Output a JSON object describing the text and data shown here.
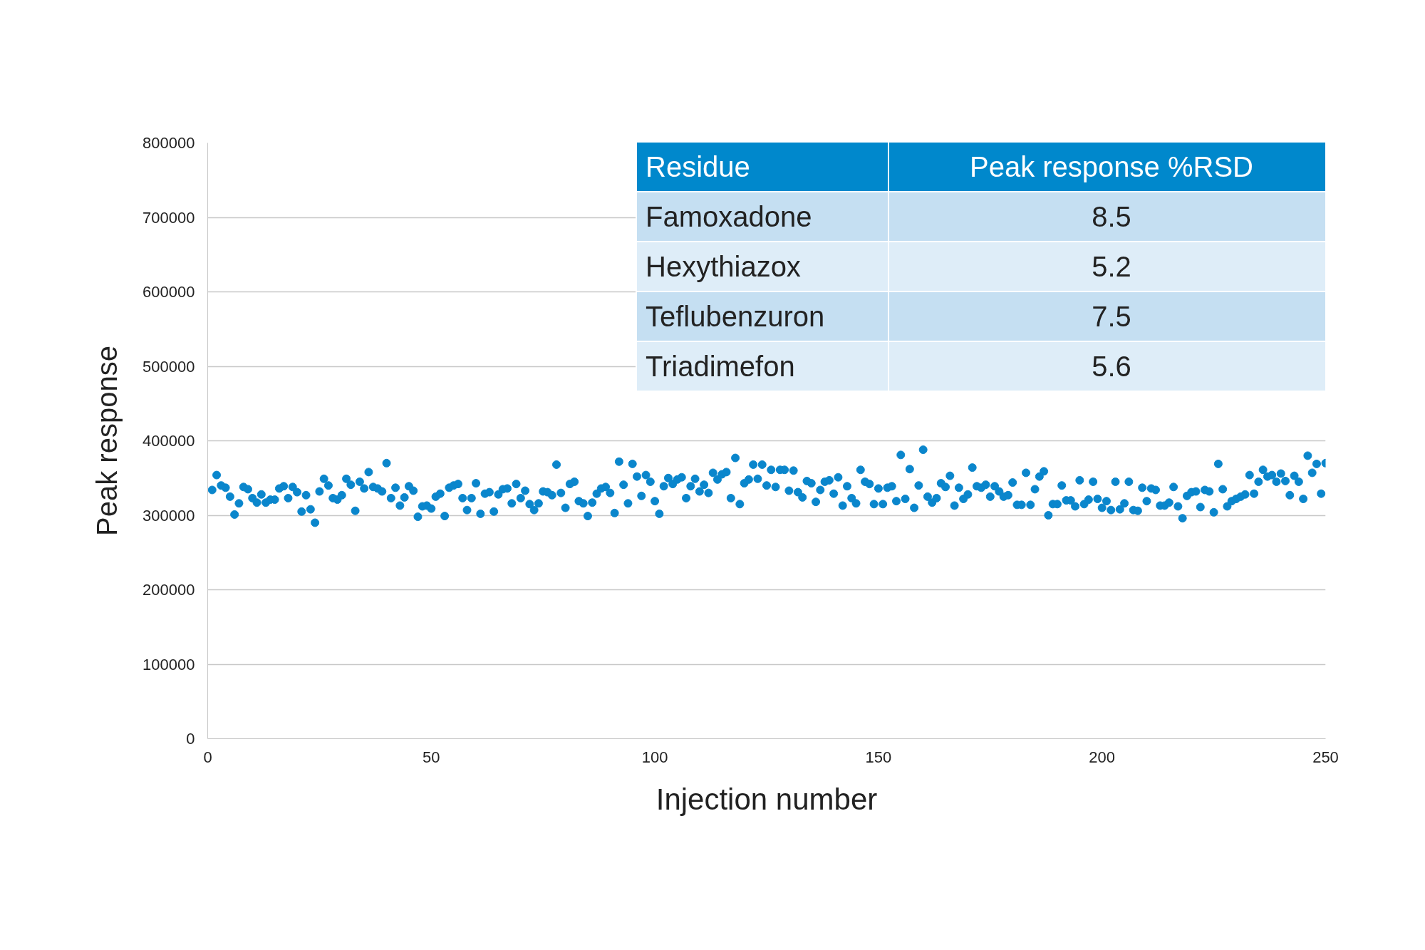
{
  "chart_data": [
    {
      "type": "scatter",
      "xlabel": "Injection number",
      "ylabel": "Peak response",
      "x": [
        1,
        2,
        3,
        4,
        5,
        6,
        7,
        8,
        9,
        10,
        11,
        12,
        13,
        14,
        15,
        16,
        17,
        18,
        19,
        20,
        21,
        22,
        23,
        24,
        25,
        26,
        27,
        28,
        29,
        30,
        31,
        32,
        33,
        34,
        35,
        36,
        37,
        38,
        39,
        40,
        41,
        42,
        43,
        44,
        45,
        46,
        47,
        48,
        49,
        50,
        51,
        52,
        53,
        54,
        55,
        56,
        57,
        58,
        59,
        60,
        61,
        62,
        63,
        64,
        65,
        66,
        67,
        68,
        69,
        70,
        71,
        72,
        73,
        74,
        75,
        76,
        77,
        78,
        79,
        80,
        81,
        82,
        83,
        84,
        85,
        86,
        87,
        88,
        89,
        90,
        91,
        92,
        93,
        94,
        95,
        96,
        97,
        98,
        99,
        100,
        101,
        102,
        103,
        104,
        105,
        106,
        107,
        108,
        109,
        110,
        111,
        112,
        113,
        114,
        115,
        116,
        117,
        118,
        119,
        120,
        121,
        122,
        123,
        124,
        125,
        126,
        127,
        128,
        129,
        130,
        131,
        132,
        133,
        134,
        135,
        136,
        137,
        138,
        139,
        140,
        141,
        142,
        143,
        144,
        145,
        146,
        147,
        148,
        149,
        150,
        151,
        152,
        153,
        154,
        155,
        156,
        157,
        158,
        159,
        160,
        161,
        162,
        163,
        164,
        165,
        166,
        167,
        168,
        169,
        170,
        171,
        172,
        173,
        174,
        175,
        176,
        177,
        178,
        179,
        180,
        181,
        182,
        183,
        184,
        185,
        186,
        187,
        188,
        189,
        190,
        191,
        192,
        193,
        194,
        195,
        196,
        197,
        198,
        199,
        200,
        201,
        202,
        203,
        204,
        205,
        206,
        207,
        208,
        209,
        210,
        211,
        212,
        213,
        214,
        215,
        216,
        217,
        218,
        219,
        220,
        221,
        222,
        223,
        224,
        225,
        226,
        227,
        228,
        229,
        230,
        231,
        232,
        233,
        234,
        235,
        236,
        237,
        238,
        239,
        240,
        241,
        242,
        243,
        244,
        245,
        246,
        247,
        248,
        249,
        250
      ],
      "series": [
        {
          "color": "#0a86cc",
          "values": [
            334000,
            354000,
            340000,
            337000,
            325000,
            301000,
            316000,
            338000,
            335000,
            323000,
            317000,
            328000,
            317000,
            321000,
            321000,
            336000,
            339000,
            323000,
            338000,
            331000,
            305000,
            327000,
            308000,
            290000,
            332000,
            349000,
            340000,
            323000,
            321000,
            327000,
            349000,
            341000,
            306000,
            345000,
            336000,
            358000,
            338000,
            336000,
            332000,
            370000,
            323000,
            337000,
            313000,
            324000,
            339000,
            333000,
            298000,
            312000,
            313000,
            309000,
            325000,
            329000,
            299000,
            337000,
            340000,
            342000,
            323000,
            307000,
            323000,
            343000,
            302000,
            329000,
            331000,
            305000,
            328000,
            335000,
            336000,
            316000,
            342000,
            323000,
            333000,
            315000,
            307000,
            316000,
            332000,
            331000,
            327000,
            368000,
            330000,
            310000,
            342000,
            345000,
            319000,
            316000,
            299000,
            317000,
            329000,
            336000,
            338000,
            330000,
            303000,
            372000,
            341000,
            316000,
            369000,
            352000,
            326000,
            354000,
            345000,
            319000,
            302000,
            339000,
            350000,
            342000,
            348000,
            351000,
            323000,
            339000,
            349000,
            332000,
            341000,
            330000,
            357000,
            348000,
            355000,
            358000,
            323000,
            377000,
            315000,
            343000,
            348000,
            368000,
            349000,
            368000,
            340000,
            361000,
            338000,
            361000,
            361000,
            333000,
            360000,
            331000,
            324000,
            346000,
            343000,
            318000,
            334000,
            345000,
            347000,
            329000,
            351000,
            313000,
            339000,
            323000,
            316000,
            361000,
            345000,
            342000,
            315000,
            336000,
            315000,
            337000,
            339000,
            319000,
            381000,
            322000,
            362000,
            310000,
            340000,
            388000,
            325000,
            317000,
            323000,
            343000,
            338000,
            353000,
            313000,
            337000,
            322000,
            328000,
            364000,
            339000,
            337000,
            341000,
            325000,
            339000,
            332000,
            325000,
            327000,
            344000,
            314000,
            314000,
            357000,
            314000,
            335000,
            352000,
            359000,
            300000,
            315000,
            315000,
            340000,
            320000,
            320000,
            312000,
            347000,
            315000,
            321000,
            345000,
            322000,
            310000,
            319000,
            307000,
            345000,
            308000,
            316000,
            345000,
            307000,
            306000,
            337000,
            319000,
            336000,
            334000,
            313000,
            313000,
            317000,
            338000,
            312000,
            296000,
            326000,
            331000,
            332000,
            311000,
            334000,
            332000,
            304000,
            369000,
            335000,
            312000,
            319000,
            322000,
            325000,
            328000,
            354000,
            329000,
            345000,
            361000,
            352000,
            354000,
            345000,
            356000,
            346000,
            327000,
            353000,
            345000,
            322000,
            380000,
            357000,
            369000,
            329000,
            370000
          ]
        }
      ],
      "xlim": [
        0,
        250
      ],
      "ylim": [
        0,
        800000
      ],
      "xticks": [
        0,
        50,
        100,
        150,
        200,
        250
      ],
      "yticks": [
        0,
        100000,
        200000,
        300000,
        400000,
        500000,
        600000,
        700000,
        800000
      ],
      "grid": "y",
      "marker": "circle"
    },
    {
      "type": "other",
      "xlabel": "Residue",
      "ylabel": "Peak response %RSD",
      "categories": [
        "Famoxadone",
        "Hexythiazox",
        "Teflubenzuron",
        "Triadimefon"
      ],
      "values": [
        8.5,
        5.2,
        7.5,
        5.6
      ],
      "data_labels": true,
      "colors": [
        "#c5dff2",
        "#deedf8",
        "#c5dff2",
        "#deedf8"
      ],
      "color": "#0088cc"
    }
  ]
}
